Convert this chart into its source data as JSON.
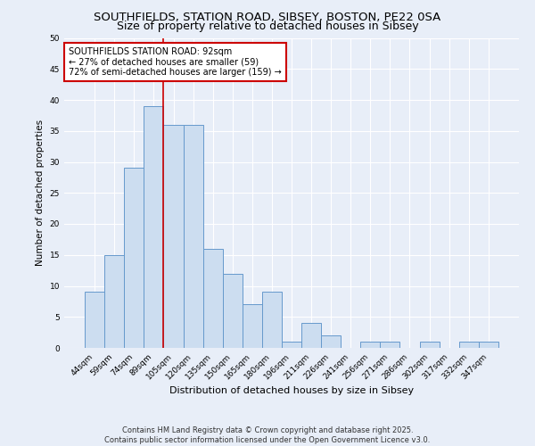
{
  "title_line1": "SOUTHFIELDS, STATION ROAD, SIBSEY, BOSTON, PE22 0SA",
  "title_line2": "Size of property relative to detached houses in Sibsey",
  "xlabel": "Distribution of detached houses by size in Sibsey",
  "ylabel": "Number of detached properties",
  "bar_labels": [
    "44sqm",
    "59sqm",
    "74sqm",
    "89sqm",
    "105sqm",
    "120sqm",
    "135sqm",
    "150sqm",
    "165sqm",
    "180sqm",
    "196sqm",
    "211sqm",
    "226sqm",
    "241sqm",
    "256sqm",
    "271sqm",
    "286sqm",
    "302sqm",
    "317sqm",
    "332sqm",
    "347sqm"
  ],
  "bar_values": [
    9,
    15,
    29,
    39,
    36,
    36,
    16,
    12,
    7,
    9,
    1,
    4,
    2,
    0,
    1,
    1,
    0,
    1,
    0,
    1,
    1
  ],
  "bar_color": "#ccddf0",
  "bar_edge_color": "#6699cc",
  "property_line_x": 3.5,
  "annotation_text": "SOUTHFIELDS STATION ROAD: 92sqm\n← 27% of detached houses are smaller (59)\n72% of semi-detached houses are larger (159) →",
  "annotation_box_color": "#ffffff",
  "annotation_box_edge": "#cc0000",
  "property_line_color": "#cc0000",
  "ylim": [
    0,
    50
  ],
  "yticks": [
    0,
    5,
    10,
    15,
    20,
    25,
    30,
    35,
    40,
    45,
    50
  ],
  "background_color": "#e8eef8",
  "plot_bg_color": "#e8eef8",
  "footer_text": "Contains HM Land Registry data © Crown copyright and database right 2025.\nContains public sector information licensed under the Open Government Licence v3.0.",
  "title_fontsize": 9.5,
  "subtitle_fontsize": 9
}
